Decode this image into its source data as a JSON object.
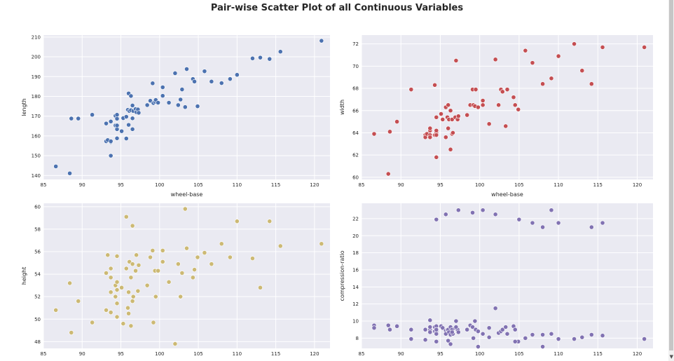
{
  "suptitle": "Pair-wise Scatter Plot of all Continuous Variables",
  "colors": {
    "face": "#eaeaf2",
    "grid": "#ffffff",
    "tick_text": "#262626",
    "marker_edge": "#ffffff"
  },
  "chart_data": [
    {
      "type": "scatter",
      "title": "",
      "xlabel": "wheel-base",
      "ylabel": "length",
      "xlim": [
        85,
        122
      ],
      "ylim": [
        138,
        211
      ],
      "xticks": [
        85,
        90,
        95,
        100,
        105,
        110,
        115,
        120
      ],
      "yticks": [
        140,
        150,
        160,
        170,
        180,
        190,
        200,
        210
      ],
      "color": "#4c72b0",
      "x": [
        86.6,
        88.4,
        88.6,
        89.5,
        91.3,
        93.1,
        93.1,
        93.3,
        93.7,
        93.7,
        93.7,
        93.7,
        94.3,
        94.3,
        94.5,
        94.5,
        94.5,
        94.5,
        94.5,
        95.1,
        95.3,
        95.7,
        95.7,
        95.9,
        96.0,
        96.0,
        96.1,
        96.3,
        96.3,
        96.5,
        96.5,
        96.5,
        96.6,
        96.9,
        97.0,
        97.2,
        97.3,
        98.4,
        98.8,
        99.1,
        99.2,
        99.4,
        99.5,
        99.8,
        100.4,
        100.4,
        101.2,
        102.0,
        102.4,
        102.7,
        102.9,
        103.3,
        103.5,
        104.3,
        104.5,
        104.9,
        105.8,
        106.7,
        108.0,
        109.1,
        110.0,
        112.0,
        113.0,
        114.2,
        115.6,
        120.9
      ],
      "y": [
        144.6,
        141.1,
        168.8,
        168.8,
        170.7,
        166.3,
        157.3,
        157.9,
        150.0,
        156.9,
        157.3,
        167.3,
        165.3,
        170.2,
        163.4,
        168.7,
        165.3,
        158.8,
        170.7,
        162.4,
        169.0,
        158.7,
        169.7,
        173.2,
        165.6,
        181.5,
        172.6,
        173.0,
        180.2,
        175.4,
        168.9,
        163.4,
        172.6,
        173.6,
        172.0,
        173.4,
        171.7,
        175.6,
        177.8,
        186.6,
        176.6,
        177.3,
        178.2,
        176.8,
        184.6,
        180.3,
        176.8,
        191.7,
        175.6,
        178.4,
        183.5,
        174.6,
        193.8,
        188.8,
        187.5,
        175.0,
        192.7,
        187.5,
        186.7,
        188.8,
        190.9,
        199.2,
        199.6,
        198.9,
        202.6,
        208.1
      ]
    },
    {
      "type": "scatter",
      "title": "",
      "xlabel": "wheel-base",
      "ylabel": "width",
      "xlim": [
        85,
        122
      ],
      "ylim": [
        59.8,
        72.8
      ],
      "xticks": [
        85,
        90,
        95,
        100,
        105,
        110,
        115,
        120
      ],
      "yticks": [
        60,
        62,
        64,
        66,
        68,
        70,
        72
      ],
      "color": "#c44e52",
      "x": [
        86.6,
        88.4,
        88.6,
        89.5,
        91.3,
        93.1,
        93.1,
        93.3,
        93.7,
        93.7,
        93.7,
        93.7,
        94.3,
        94.3,
        94.5,
        94.5,
        94.5,
        94.5,
        94.5,
        95.1,
        95.3,
        95.7,
        95.7,
        95.9,
        96.0,
        96.0,
        96.1,
        96.3,
        96.3,
        96.5,
        96.5,
        96.5,
        96.6,
        96.9,
        97.0,
        97.2,
        97.3,
        98.4,
        98.8,
        99.1,
        99.2,
        99.4,
        99.5,
        99.8,
        100.4,
        100.4,
        101.2,
        102.0,
        102.4,
        102.7,
        102.9,
        103.3,
        103.5,
        104.3,
        104.5,
        104.9,
        105.8,
        106.7,
        108.0,
        109.1,
        110.0,
        112.0,
        113.0,
        114.2,
        115.6,
        120.9
      ],
      "y": [
        63.9,
        60.3,
        64.1,
        65.0,
        67.9,
        63.8,
        63.6,
        63.9,
        64.2,
        63.8,
        63.6,
        64.4,
        63.8,
        68.3,
        61.8,
        65.4,
        64.0,
        63.8,
        64.2,
        65.7,
        65.2,
        63.6,
        66.3,
        65.4,
        66.5,
        64.4,
        65.2,
        66.0,
        62.5,
        65.2,
        63.9,
        65.2,
        64.0,
        65.4,
        70.5,
        65.2,
        65.5,
        65.6,
        66.5,
        67.9,
        66.5,
        66.4,
        67.9,
        66.3,
        66.9,
        66.5,
        64.8,
        70.6,
        66.5,
        67.9,
        67.7,
        64.6,
        67.9,
        67.2,
        66.5,
        66.1,
        71.4,
        70.3,
        68.4,
        68.9,
        70.9,
        72.0,
        69.6,
        68.4,
        71.7,
        71.7
      ]
    },
    {
      "type": "scatter",
      "title": "",
      "xlabel": "wheel-base",
      "ylabel": "height",
      "xlim": [
        85,
        122
      ],
      "ylim": [
        47.4,
        60.3
      ],
      "xticks": [
        85,
        90,
        95,
        100,
        105,
        110,
        115,
        120
      ],
      "yticks": [
        48,
        50,
        52,
        54,
        56,
        58,
        60
      ],
      "color": "#ccb974",
      "x": [
        86.6,
        88.4,
        88.6,
        89.5,
        91.3,
        93.1,
        93.1,
        93.3,
        93.7,
        93.7,
        93.7,
        93.7,
        94.3,
        94.3,
        94.5,
        94.5,
        94.5,
        94.5,
        94.5,
        95.1,
        95.3,
        95.7,
        95.7,
        95.9,
        96.0,
        96.0,
        96.1,
        96.3,
        96.3,
        96.5,
        96.5,
        96.5,
        96.6,
        96.9,
        97.0,
        97.2,
        97.3,
        98.4,
        98.8,
        99.1,
        99.2,
        99.4,
        99.5,
        99.8,
        100.4,
        100.4,
        101.2,
        102.0,
        102.4,
        102.7,
        102.9,
        103.3,
        103.5,
        104.3,
        104.5,
        104.9,
        105.8,
        106.7,
        108.0,
        109.1,
        110.0,
        112.0,
        113.0,
        114.2,
        115.6,
        120.9
      ],
      "y": [
        50.8,
        53.2,
        48.8,
        51.6,
        49.7,
        54.1,
        50.8,
        55.7,
        52.4,
        50.6,
        53.7,
        54.5,
        52.0,
        53.0,
        55.6,
        50.2,
        53.3,
        51.4,
        52.6,
        52.8,
        49.6,
        59.1,
        54.5,
        51.0,
        50.5,
        52.4,
        55.1,
        53.7,
        49.4,
        54.9,
        51.6,
        58.3,
        52.0,
        54.3,
        55.7,
        52.5,
        54.8,
        53.0,
        55.5,
        56.1,
        49.7,
        54.3,
        52.0,
        54.3,
        55.1,
        56.1,
        53.3,
        47.8,
        54.9,
        52.0,
        54.1,
        59.8,
        56.3,
        53.7,
        54.4,
        55.5,
        55.9,
        54.9,
        56.7,
        55.5,
        58.7,
        55.4,
        52.8,
        58.7,
        56.5,
        56.7
      ]
    },
    {
      "type": "scatter",
      "title": "",
      "xlabel": "",
      "ylabel": "compression-ratio",
      "xlim": [
        85,
        122
      ],
      "ylim": [
        6.8,
        23.8
      ],
      "xticks": [
        85,
        90,
        95,
        100,
        105,
        110,
        115,
        120
      ],
      "yticks": [
        8,
        10,
        12,
        14,
        16,
        18,
        20,
        22
      ],
      "color": "#8172b2",
      "x": [
        86.6,
        86.6,
        88.4,
        88.6,
        89.5,
        91.3,
        91.3,
        93.1,
        93.1,
        93.7,
        93.7,
        93.7,
        93.7,
        94.3,
        94.3,
        94.5,
        94.5,
        94.5,
        94.5,
        94.5,
        94.5,
        95.1,
        95.3,
        95.7,
        95.7,
        95.9,
        96.0,
        96.0,
        96.1,
        96.3,
        96.3,
        96.5,
        96.6,
        96.9,
        97.0,
        97.2,
        97.3,
        98.4,
        98.8,
        99.1,
        99.2,
        99.4,
        99.5,
        99.8,
        100.4,
        101.2,
        102.0,
        102.4,
        102.7,
        102.9,
        103.3,
        103.5,
        104.3,
        104.5,
        104.9,
        105.8,
        106.7,
        108.0,
        109.1,
        110.0,
        112.0,
        113.0,
        114.2,
        115.6,
        120.9,
        94.5,
        95.7,
        97.3,
        99.1,
        100.4,
        102.0,
        105.0,
        106.7,
        108.0,
        109.1,
        110.0,
        114.2,
        115.6,
        96.3,
        99.8,
        104.5,
        108.0,
        101.2,
        97.0,
        96.5
      ],
      "y": [
        9.5,
        9.2,
        9.5,
        9.0,
        9.4,
        9.0,
        7.9,
        9.0,
        7.8,
        9.0,
        8.7,
        9.3,
        10.1,
        9.3,
        8.8,
        9.4,
        9.0,
        8.7,
        8.5,
        7.6,
        9.0,
        9.4,
        9.2,
        8.9,
        8.5,
        9.0,
        7.7,
        9.0,
        8.7,
        8.4,
        9.3,
        9.0,
        8.5,
        9.2,
        10.0,
        9.0,
        8.7,
        9.0,
        9.5,
        9.3,
        8.0,
        10.0,
        9.0,
        8.8,
        8.5,
        9.2,
        11.5,
        8.6,
        8.8,
        9.0,
        9.3,
        8.5,
        9.4,
        9.0,
        7.6,
        8.0,
        8.4,
        7.0,
        8.5,
        7.9,
        7.9,
        8.1,
        8.4,
        8.3,
        7.9,
        21.9,
        22.5,
        23.0,
        22.7,
        23.0,
        22.5,
        21.9,
        21.5,
        21.0,
        23.0,
        21.5,
        21.0,
        21.5,
        7.3,
        7.0,
        7.6,
        8.4,
        8.1,
        9.3,
        8.7
      ]
    }
  ]
}
